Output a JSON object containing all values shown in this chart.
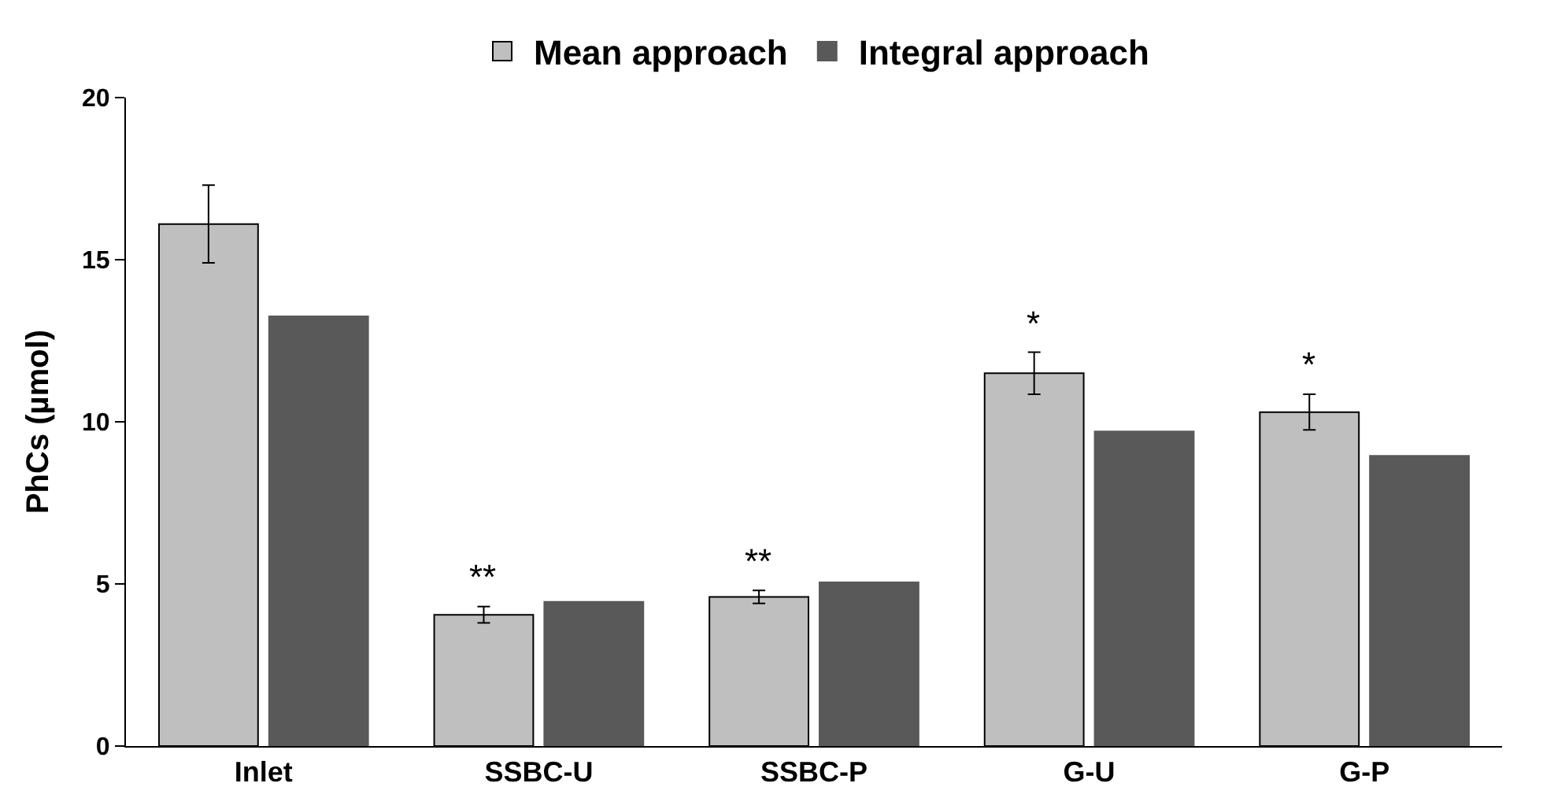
{
  "chart_data": {
    "type": "bar",
    "ylabel": "PhCs (µmol)",
    "categories": [
      "Inlet",
      "SSBC-U",
      "SSBC-P",
      "G-U",
      "G-P"
    ],
    "series": [
      {
        "name": "Mean approach",
        "color": "#bfbfbf",
        "values": [
          16.1,
          4.05,
          4.6,
          11.5,
          10.3
        ],
        "errors": [
          1.2,
          0.25,
          0.2,
          0.65,
          0.55
        ]
      },
      {
        "name": "Integral approach",
        "color": "#595959",
        "values": [
          13.25,
          4.45,
          5.05,
          9.7,
          8.95
        ]
      }
    ],
    "ylim": [
      0,
      20
    ],
    "yticks": [
      0,
      5,
      10,
      15,
      20
    ],
    "legend": "top",
    "annotations": [
      "**",
      "**",
      "*",
      "*"
    ]
  }
}
